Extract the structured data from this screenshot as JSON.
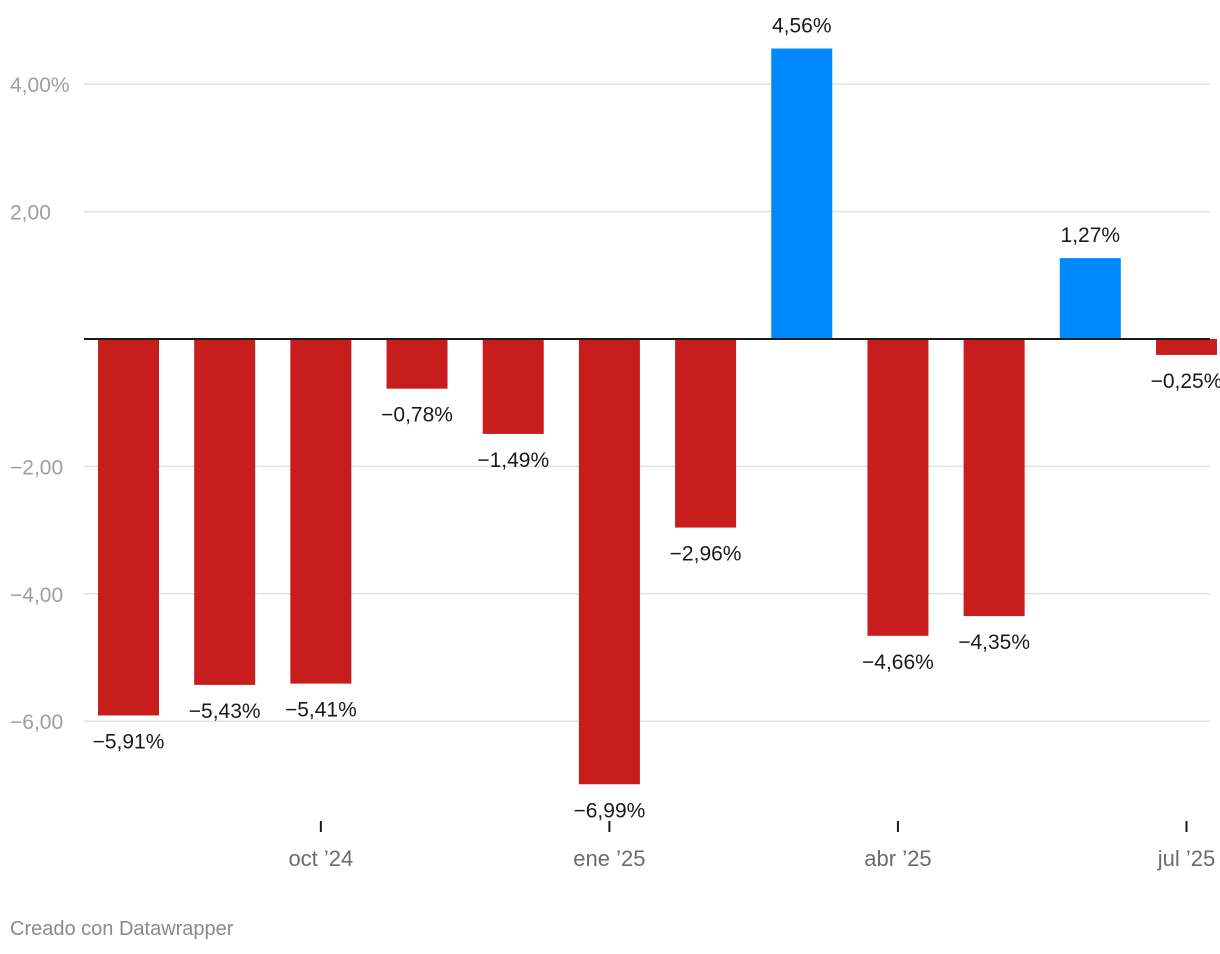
{
  "chart_data": {
    "type": "bar",
    "categories": [
      "2024-08",
      "2024-09",
      "2024-10",
      "2024-11",
      "2024-12",
      "2025-01",
      "2025-02",
      "2025-03",
      "2025-04",
      "2025-05",
      "2025-06",
      "2025-07"
    ],
    "values": [
      -5.91,
      -5.43,
      -5.41,
      -0.78,
      -1.49,
      -6.99,
      -2.96,
      4.56,
      -4.66,
      -4.35,
      1.27,
      -0.25
    ],
    "data_labels": [
      "−5,91%",
      "−5,43%",
      "−5,41%",
      "−0,78%",
      "−1,49%",
      "−6,99%",
      "−2,96%",
      "4,56%",
      "−4,66%",
      "−4,35%",
      "1,27%",
      "−0,25%"
    ],
    "x_ticks": [
      {
        "category": "2024-10",
        "label": "oct ’24"
      },
      {
        "category": "2025-01",
        "label": "ene ’25"
      },
      {
        "category": "2025-04",
        "label": "abr ’25"
      },
      {
        "category": "2025-07",
        "label": "jul ’25"
      }
    ],
    "y_ticks": [
      {
        "value": 4,
        "label": "4,00%"
      },
      {
        "value": 2,
        "label": "2,00"
      },
      {
        "value": -2,
        "label": "−2,00"
      },
      {
        "value": -4,
        "label": "−4,00"
      },
      {
        "value": -6,
        "label": "−6,00"
      }
    ],
    "ylim": [
      -7.5,
      5.0
    ],
    "grid": true,
    "legend": "none",
    "colors": {
      "positive": "#0088ff",
      "negative": "#c71e1d",
      "gridline": "#e0e0e0",
      "zero_line": "#1a1a1a"
    }
  },
  "footer": {
    "credit": "Creado con Datawrapper"
  }
}
